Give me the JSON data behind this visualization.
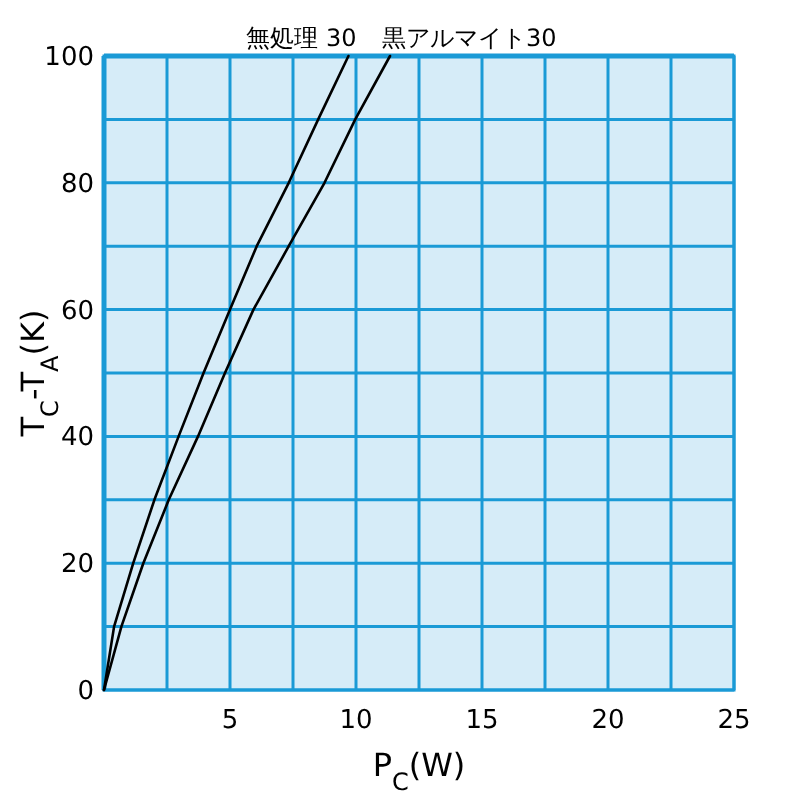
{
  "chart_data": {
    "type": "line",
    "xlabel": "P$_{C}$(W)",
    "ylabel": "T$_{C}$-T$_{A}$(K)",
    "xlim": [
      0,
      25
    ],
    "ylim": [
      0,
      100
    ],
    "xticks": [
      {
        "value": 0,
        "label": null
      },
      {
        "value": 2.5,
        "label": null
      },
      5,
      {
        "value": 7.5,
        "label": null
      },
      10,
      {
        "value": 12.5,
        "label": null
      },
      15,
      {
        "value": 17.5,
        "label": null
      },
      20,
      {
        "value": 22.5,
        "label": null
      },
      25
    ],
    "yticks": [
      0,
      {
        "value": 10,
        "label": null
      },
      20,
      {
        "value": 30,
        "label": null
      },
      40,
      {
        "value": 50,
        "label": null
      },
      60,
      {
        "value": 70,
        "label": null
      },
      80,
      {
        "value": 90,
        "label": null
      },
      100
    ],
    "grid": true,
    "series": [
      {
        "name": "無処理 30",
        "color": "#000000",
        "x": [
          0,
          0.4,
          1.16,
          2.0,
          2.96,
          3.95,
          5.0,
          6.06,
          7.33,
          8.5,
          9.7
        ],
        "values": [
          0,
          10,
          20,
          30,
          40,
          50,
          60,
          70,
          80,
          90,
          100
        ]
      },
      {
        "name": "黒アルマイト30",
        "color": "#000000",
        "x": [
          0,
          0.69,
          1.56,
          2.57,
          3.73,
          4.8,
          5.93,
          7.33,
          8.75,
          9.97,
          11.35
        ],
        "values": [
          0,
          10,
          20,
          30,
          40,
          50,
          60,
          70,
          80,
          90,
          100
        ]
      }
    ]
  }
}
